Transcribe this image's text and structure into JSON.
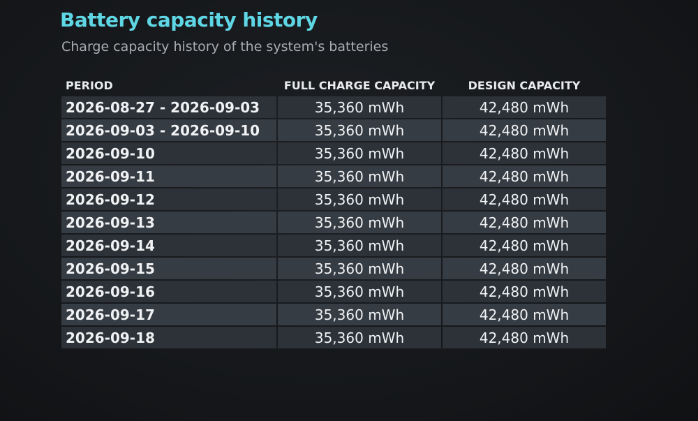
{
  "header": {
    "title": "Battery capacity history",
    "subtitle": "Charge capacity history of the system's batteries"
  },
  "table": {
    "columns": [
      "PERIOD",
      "FULL CHARGE CAPACITY",
      "DESIGN CAPACITY"
    ],
    "rows": [
      [
        "2026-08-27 - 2026-09-03",
        "35,360 mWh",
        "42,480 mWh"
      ],
      [
        "2026-09-03 - 2026-09-10",
        "35,360 mWh",
        "42,480 mWh"
      ],
      [
        "2026-09-10",
        "35,360 mWh",
        "42,480 mWh"
      ],
      [
        "2026-09-11",
        "35,360 mWh",
        "42,480 mWh"
      ],
      [
        "2026-09-12",
        "35,360 mWh",
        "42,480 mWh"
      ],
      [
        "2026-09-13",
        "35,360 mWh",
        "42,480 mWh"
      ],
      [
        "2026-09-14",
        "35,360 mWh",
        "42,480 mWh"
      ],
      [
        "2026-09-15",
        "35,360 mWh",
        "42,480 mWh"
      ],
      [
        "2026-09-16",
        "35,360 mWh",
        "42,480 mWh"
      ],
      [
        "2026-09-17",
        "35,360 mWh",
        "42,480 mWh"
      ],
      [
        "2026-09-18",
        "35,360 mWh",
        "42,480 mWh"
      ]
    ]
  }
}
